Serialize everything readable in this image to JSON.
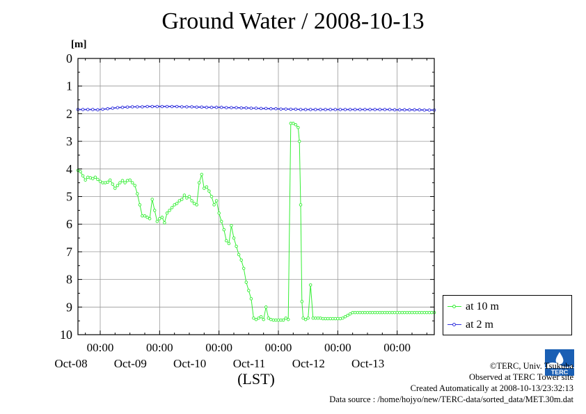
{
  "title": "Ground Water / 2008-10-13",
  "colors": {
    "series1": "#33ee33",
    "series2": "#3333dd",
    "grid": "#999999"
  },
  "chart_data": {
    "type": "line",
    "title": "Ground Water / 2008-10-13",
    "ylabel_unit": "[m]",
    "xlabel": "(LST)",
    "x_unit": "hours since Oct-08 00:00 LST",
    "xlim": [
      -9,
      135
    ],
    "ylim": [
      0,
      10
    ],
    "y_inverted": true,
    "y_ticks": [
      "0",
      "1",
      "2",
      "3",
      "4",
      "5",
      "6",
      "7",
      "8",
      "9",
      "10"
    ],
    "x_ticks": [
      {
        "x": 0,
        "time": "00:00",
        "date": "Oct-08"
      },
      {
        "x": 24,
        "time": "00:00",
        "date": "Oct-09"
      },
      {
        "x": 48,
        "time": "00:00",
        "date": "Oct-10"
      },
      {
        "x": 72,
        "time": "00:00",
        "date": "Oct-11"
      },
      {
        "x": 96,
        "time": "00:00",
        "date": "Oct-12"
      },
      {
        "x": 120,
        "time": "00:00",
        "date": "Oct-13"
      }
    ],
    "grid": true,
    "legend_position": "bottom-right outside",
    "series": [
      {
        "name": "at 10 m",
        "color": "#33ee33",
        "points": [
          [
            -9,
            4.05
          ],
          [
            -8,
            4.1
          ],
          [
            -7,
            4.25
          ],
          [
            -6,
            4.4
          ],
          [
            -5,
            4.3
          ],
          [
            -4,
            4.32
          ],
          [
            -3,
            4.35
          ],
          [
            -2,
            4.3
          ],
          [
            -1,
            4.38
          ],
          [
            0,
            4.45
          ],
          [
            1,
            4.5
          ],
          [
            2,
            4.5
          ],
          [
            3,
            4.48
          ],
          [
            4,
            4.4
          ],
          [
            5,
            4.55
          ],
          [
            6,
            4.7
          ],
          [
            7,
            4.6
          ],
          [
            8,
            4.5
          ],
          [
            9,
            4.42
          ],
          [
            10,
            4.5
          ],
          [
            11,
            4.42
          ],
          [
            12,
            4.4
          ],
          [
            13,
            4.5
          ],
          [
            14,
            4.6
          ],
          [
            15,
            4.9
          ],
          [
            16,
            5.3
          ],
          [
            17,
            5.7
          ],
          [
            18,
            5.7
          ],
          [
            19,
            5.75
          ],
          [
            20,
            5.8
          ],
          [
            21,
            5.1
          ],
          [
            22,
            5.5
          ],
          [
            23,
            5.9
          ],
          [
            24,
            5.8
          ],
          [
            25,
            5.75
          ],
          [
            26,
            5.95
          ],
          [
            27,
            5.6
          ],
          [
            28,
            5.5
          ],
          [
            29,
            5.4
          ],
          [
            30,
            5.3
          ],
          [
            31,
            5.25
          ],
          [
            32,
            5.15
          ],
          [
            33,
            5.1
          ],
          [
            34,
            4.95
          ],
          [
            35,
            5.05
          ],
          [
            36,
            5.0
          ],
          [
            37,
            5.15
          ],
          [
            38,
            5.25
          ],
          [
            39,
            5.3
          ],
          [
            40,
            4.5
          ],
          [
            41,
            4.2
          ],
          [
            42,
            4.7
          ],
          [
            43,
            4.65
          ],
          [
            44,
            4.8
          ],
          [
            45,
            5.0
          ],
          [
            46,
            5.3
          ],
          [
            47,
            5.15
          ],
          [
            48,
            5.6
          ],
          [
            49,
            5.9
          ],
          [
            50,
            6.2
          ],
          [
            51,
            6.6
          ],
          [
            52,
            6.7
          ],
          [
            53,
            6.05
          ],
          [
            54,
            6.5
          ],
          [
            55,
            6.8
          ],
          [
            56,
            7.1
          ],
          [
            57,
            7.3
          ],
          [
            58,
            7.6
          ],
          [
            59,
            8.1
          ],
          [
            60,
            8.4
          ],
          [
            61,
            8.7
          ],
          [
            62,
            9.4
          ],
          [
            63,
            9.45
          ],
          [
            64,
            9.4
          ],
          [
            65,
            9.35
          ],
          [
            66,
            9.45
          ],
          [
            67,
            9.0
          ],
          [
            68,
            9.4
          ],
          [
            69,
            9.45
          ],
          [
            70,
            9.47
          ],
          [
            71,
            9.47
          ],
          [
            72,
            9.47
          ],
          [
            73,
            9.47
          ],
          [
            74,
            9.47
          ],
          [
            75,
            9.4
          ],
          [
            76,
            9.45
          ],
          [
            77,
            2.35
          ],
          [
            78,
            2.35
          ],
          [
            79,
            2.4
          ],
          [
            80,
            2.5
          ],
          [
            80.5,
            3.0
          ],
          [
            81,
            5.3
          ],
          [
            81.5,
            8.8
          ],
          [
            82,
            9.4
          ],
          [
            83,
            9.45
          ],
          [
            84,
            9.4
          ],
          [
            85,
            8.2
          ],
          [
            86,
            9.4
          ],
          [
            87,
            9.4
          ],
          [
            88,
            9.4
          ],
          [
            89,
            9.4
          ],
          [
            90,
            9.42
          ],
          [
            91,
            9.42
          ],
          [
            92,
            9.42
          ],
          [
            93,
            9.42
          ],
          [
            94,
            9.42
          ],
          [
            95,
            9.42
          ],
          [
            96,
            9.42
          ],
          [
            97,
            9.42
          ],
          [
            98,
            9.4
          ],
          [
            99,
            9.35
          ],
          [
            100,
            9.3
          ],
          [
            101,
            9.25
          ],
          [
            102,
            9.2
          ],
          [
            103,
            9.2
          ],
          [
            104,
            9.2
          ],
          [
            105,
            9.2
          ],
          [
            106,
            9.2
          ],
          [
            107,
            9.2
          ],
          [
            108,
            9.2
          ],
          [
            109,
            9.2
          ],
          [
            110,
            9.2
          ],
          [
            111,
            9.2
          ],
          [
            112,
            9.2
          ],
          [
            113,
            9.2
          ],
          [
            114,
            9.2
          ],
          [
            115,
            9.2
          ],
          [
            116,
            9.2
          ],
          [
            117,
            9.2
          ],
          [
            118,
            9.2
          ],
          [
            119,
            9.2
          ],
          [
            120,
            9.2
          ],
          [
            121,
            9.2
          ],
          [
            122,
            9.2
          ],
          [
            123,
            9.2
          ],
          [
            124,
            9.2
          ],
          [
            125,
            9.2
          ],
          [
            126,
            9.2
          ],
          [
            127,
            9.2
          ],
          [
            128,
            9.2
          ],
          [
            129,
            9.2
          ],
          [
            130,
            9.2
          ],
          [
            131,
            9.2
          ],
          [
            132,
            9.2
          ],
          [
            133,
            9.2
          ],
          [
            134,
            9.2
          ],
          [
            135,
            9.2
          ]
        ]
      },
      {
        "name": "at 2 m",
        "color": "#3333dd",
        "points": [
          [
            -9,
            1.85
          ],
          [
            -7,
            1.85
          ],
          [
            -5,
            1.85
          ],
          [
            -3,
            1.85
          ],
          [
            -1,
            1.86
          ],
          [
            1,
            1.84
          ],
          [
            3,
            1.82
          ],
          [
            5,
            1.8
          ],
          [
            7,
            1.78
          ],
          [
            9,
            1.77
          ],
          [
            11,
            1.76
          ],
          [
            13,
            1.75
          ],
          [
            15,
            1.75
          ],
          [
            17,
            1.75
          ],
          [
            19,
            1.74
          ],
          [
            21,
            1.74
          ],
          [
            23,
            1.74
          ],
          [
            25,
            1.74
          ],
          [
            27,
            1.74
          ],
          [
            29,
            1.74
          ],
          [
            31,
            1.74
          ],
          [
            33,
            1.75
          ],
          [
            35,
            1.75
          ],
          [
            37,
            1.75
          ],
          [
            39,
            1.76
          ],
          [
            41,
            1.76
          ],
          [
            43,
            1.77
          ],
          [
            45,
            1.77
          ],
          [
            47,
            1.77
          ],
          [
            49,
            1.77
          ],
          [
            51,
            1.78
          ],
          [
            53,
            1.78
          ],
          [
            55,
            1.78
          ],
          [
            57,
            1.79
          ],
          [
            59,
            1.79
          ],
          [
            61,
            1.8
          ],
          [
            63,
            1.8
          ],
          [
            65,
            1.81
          ],
          [
            67,
            1.81
          ],
          [
            69,
            1.82
          ],
          [
            71,
            1.82
          ],
          [
            73,
            1.83
          ],
          [
            75,
            1.83
          ],
          [
            77,
            1.84
          ],
          [
            79,
            1.84
          ],
          [
            81,
            1.85
          ],
          [
            83,
            1.85
          ],
          [
            85,
            1.85
          ],
          [
            87,
            1.85
          ],
          [
            89,
            1.85
          ],
          [
            91,
            1.85
          ],
          [
            93,
            1.85
          ],
          [
            95,
            1.85
          ],
          [
            97,
            1.85
          ],
          [
            99,
            1.85
          ],
          [
            101,
            1.85
          ],
          [
            103,
            1.85
          ],
          [
            105,
            1.85
          ],
          [
            107,
            1.85
          ],
          [
            109,
            1.85
          ],
          [
            111,
            1.85
          ],
          [
            113,
            1.85
          ],
          [
            115,
            1.85
          ],
          [
            117,
            1.85
          ],
          [
            119,
            1.86
          ],
          [
            121,
            1.86
          ],
          [
            123,
            1.86
          ],
          [
            125,
            1.86
          ],
          [
            127,
            1.86
          ],
          [
            129,
            1.86
          ],
          [
            131,
            1.87
          ],
          [
            133,
            1.87
          ],
          [
            135,
            1.87
          ]
        ]
      }
    ]
  },
  "legend": {
    "items": [
      {
        "label": "at 10 m"
      },
      {
        "label": "at 2 m"
      }
    ]
  },
  "credits": {
    "copyright": "©TERC, Univ. Tsukuba",
    "observed": "Observed at TERC Tower site",
    "created": "Created Automatically at 2008-10-13/23:32:13",
    "source": "Data source : /home/hojyo/new/TERC-data/sorted_data/MET.30m.dat",
    "logo_text": "TERC"
  }
}
